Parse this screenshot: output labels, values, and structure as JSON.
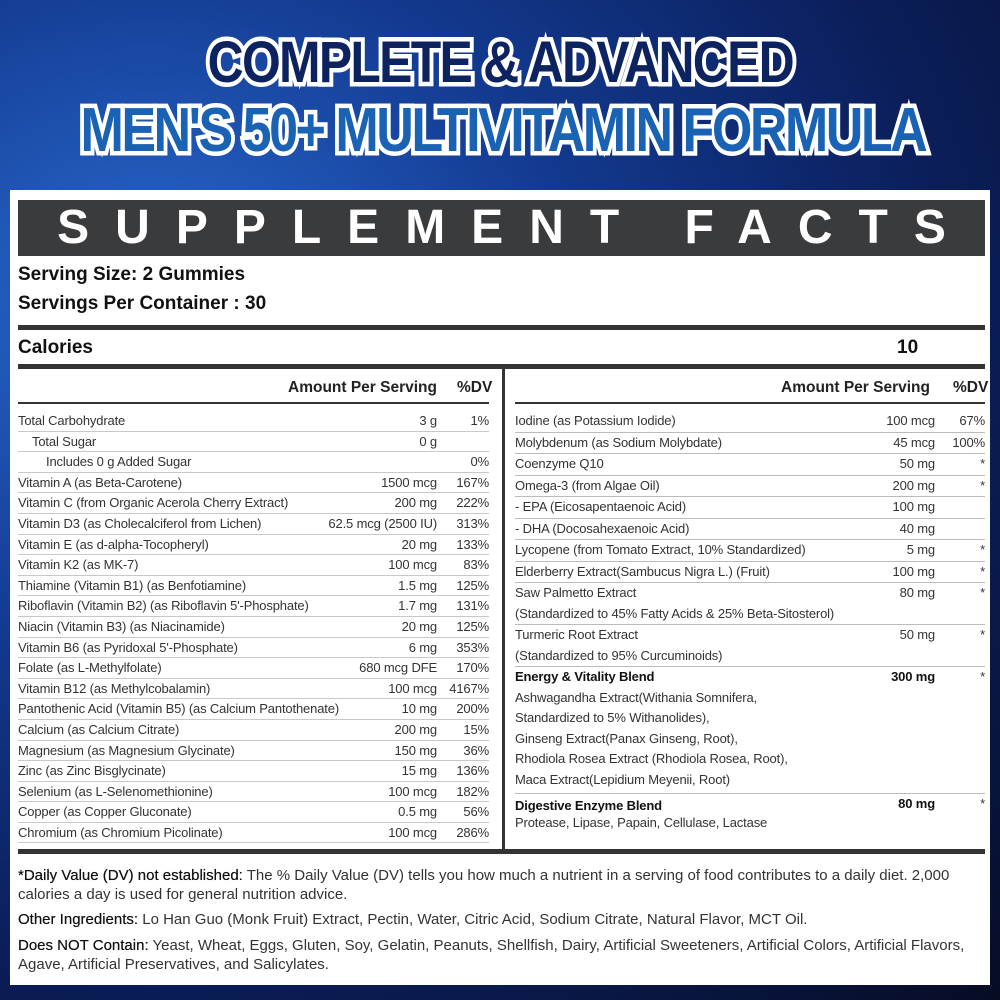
{
  "banner": {
    "line1": "COMPLETE & ADVANCED",
    "line2": "MEN'S 50+ MULTIVITAMIN FORMULA"
  },
  "facts": {
    "title": "SUPPLEMENT FACTS",
    "serving_size": "Serving Size: 2 Gummies",
    "servings_per_container": "Servings Per Container : 30",
    "calories_label": "Calories",
    "calories_value": "10",
    "amount_header": "Amount Per Serving",
    "dv_header": "%DV"
  },
  "left_rows": [
    {
      "name": "Total Carbohydrate",
      "amount": "3 g",
      "dv": "1%",
      "indent": 0
    },
    {
      "name": "Total Sugar",
      "amount": "0 g",
      "dv": "",
      "indent": 1
    },
    {
      "name": "Includes 0 g Added Sugar",
      "amount": "",
      "dv": "0%",
      "indent": 2
    },
    {
      "name": "Vitamin A (as Beta-Carotene)",
      "amount": "1500 mcg",
      "dv": "167%",
      "indent": 0
    },
    {
      "name": "Vitamin C (from Organic Acerola Cherry Extract)",
      "amount": "200 mg",
      "dv": "222%",
      "indent": 0
    },
    {
      "name": "Vitamin D3 (as Cholecalciferol from Lichen)",
      "amount": "62.5 mcg (2500 IU)",
      "dv": "313%",
      "indent": 0
    },
    {
      "name": "Vitamin E (as d-alpha-Tocopheryl)",
      "amount": "20 mg",
      "dv": "133%",
      "indent": 0
    },
    {
      "name": "Vitamin K2 (as MK-7)",
      "amount": "100 mcg",
      "dv": "83%",
      "indent": 0
    },
    {
      "name": "Thiamine (Vitamin B1) (as Benfotiamine)",
      "amount": "1.5 mg",
      "dv": "125%",
      "indent": 0
    },
    {
      "name": "Riboflavin (Vitamin B2) (as Riboflavin 5'-Phosphate)",
      "amount": "1.7 mg",
      "dv": "131%",
      "indent": 0
    },
    {
      "name": "Niacin (Vitamin B3) (as Niacinamide)",
      "amount": "20 mg",
      "dv": "125%",
      "indent": 0
    },
    {
      "name": "Vitamin B6 (as Pyridoxal 5'-Phosphate)",
      "amount": "6 mg",
      "dv": "353%",
      "indent": 0
    },
    {
      "name": "Folate (as L-Methylfolate)",
      "amount": "680 mcg DFE",
      "dv": "170%",
      "indent": 0
    },
    {
      "name": "Vitamin B12 (as Methylcobalamin)",
      "amount": "100 mcg",
      "dv": "4167%",
      "indent": 0
    },
    {
      "name": "Pantothenic Acid (Vitamin B5) (as Calcium Pantothenate)",
      "amount": "10 mg",
      "dv": "200%",
      "indent": 0
    },
    {
      "name": "Calcium (as Calcium Citrate)",
      "amount": "200 mg",
      "dv": "15%",
      "indent": 0
    },
    {
      "name": "Magnesium (as Magnesium Glycinate)",
      "amount": "150 mg",
      "dv": "36%",
      "indent": 0
    },
    {
      "name": "Zinc (as Zinc Bisglycinate)",
      "amount": "15 mg",
      "dv": "136%",
      "indent": 0
    },
    {
      "name": "Selenium (as L-Selenomethionine)",
      "amount": "100 mcg",
      "dv": "182%",
      "indent": 0
    },
    {
      "name": "Copper (as Copper Gluconate)",
      "amount": "0.5 mg",
      "dv": "56%",
      "indent": 0
    },
    {
      "name": "Chromium (as Chromium Picolinate)",
      "amount": "100 mcg",
      "dv": "286%",
      "indent": 0
    }
  ],
  "right_rows": [
    {
      "lines": [
        "Iodine (as Potassium Iodide)"
      ],
      "amount": "100 mcg",
      "dv": "67%"
    },
    {
      "lines": [
        "Molybdenum (as Sodium Molybdate)"
      ],
      "amount": "45 mcg",
      "dv": "100%"
    },
    {
      "lines": [
        "Coenzyme Q10"
      ],
      "amount": "50 mg",
      "dv": "*"
    },
    {
      "lines": [
        "Omega-3 (from Algae Oil)"
      ],
      "amount": "200 mg",
      "dv": "*"
    },
    {
      "lines": [
        "- EPA (Eicosapentaenoic Acid)"
      ],
      "amount": "100 mg",
      "dv": ""
    },
    {
      "lines": [
        "- DHA (Docosahexaenoic Acid)"
      ],
      "amount": "40 mg",
      "dv": ""
    },
    {
      "lines": [
        "Lycopene (from Tomato Extract, 10% Standardized)"
      ],
      "amount": "5 mg",
      "dv": "*"
    },
    {
      "lines": [
        "Elderberry Extract(Sambucus Nigra L.) (Fruit)"
      ],
      "amount": "100 mg",
      "dv": "*"
    },
    {
      "lines": [
        "Saw Palmetto Extract",
        "(Standardized to 45% Fatty Acids & 25% Beta-Sitosterol)"
      ],
      "amount": "80 mg",
      "dv": "*"
    },
    {
      "lines": [
        "Turmeric Root Extract",
        "(Standardized to 95% Curcuminoids)"
      ],
      "amount": "50 mg",
      "dv": "*"
    },
    {
      "lines": [
        "Energy & Vitality Blend",
        "Ashwagandha Extract(Withania Somnifera,",
        "Standardized to 5% Withanolides),",
        "Ginseng Extract(Panax Ginseng, Root),",
        "Rhodiola Rosea Extract (Rhodiola Rosea, Root),",
        "Maca Extract(Lepidium Meyenii, Root)"
      ],
      "amount": "300 mg",
      "dv": "*",
      "blend": true
    },
    {
      "lines": [
        "Digestive Enzyme Blend",
        "Protease, Lipase, Papain, Cellulase, Lactase"
      ],
      "amount": "80 mg",
      "dv": "*",
      "blend": true
    }
  ],
  "footer": {
    "dv_note_label": "*Daily Value (DV) not established:",
    "dv_note_text": " The % Daily Value (DV) tells you how much a nutrient in a serving of food contributes to a daily diet. 2,000 calories a day is used for general nutrition advice.",
    "other_label": "Other Ingredients:",
    "other_text": " Lo Han Guo (Monk Fruit) Extract, Pectin, Water, Citric Acid, Sodium Citrate, Natural Flavor, MCT Oil.",
    "not_contain_label": "Does NOT Contain:",
    "not_contain_text": " Yeast, Wheat, Eggs, Gluten, Soy, Gelatin, Peanuts, Shellfish, Dairy, Artificial Sweeteners, Artificial Colors, Artificial Flavors, Agave, Artificial Preservatives, and Salicylates."
  },
  "colors": {
    "panel_header": "#3a3b3d",
    "title_dark": "#0d2360",
    "title_blue": "#1a62b4"
  }
}
